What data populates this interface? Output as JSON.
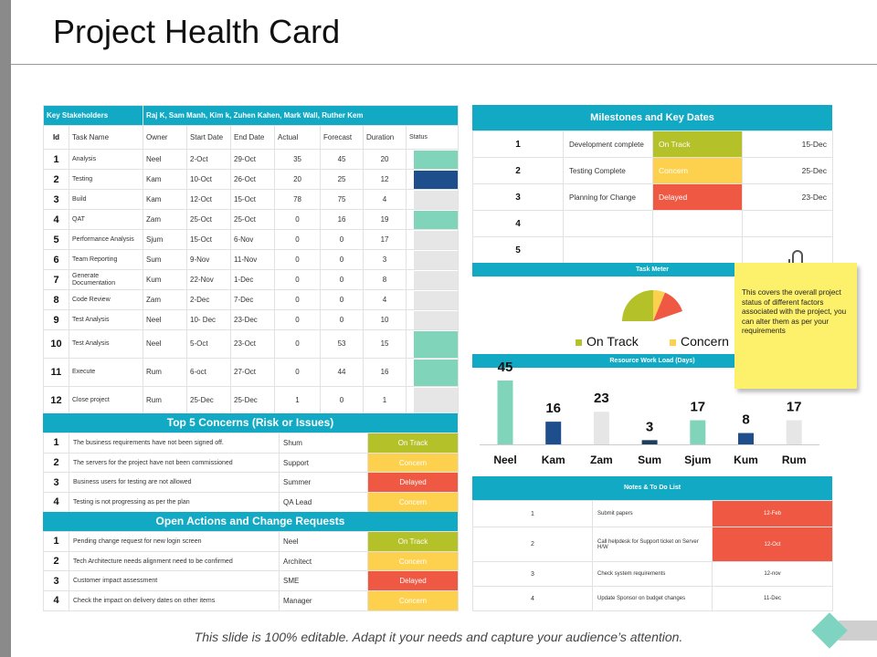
{
  "title": "Project Health Card",
  "colors": {
    "accent": "#11a9c4",
    "on_track": "#b5c128",
    "concern": "#fdd14e",
    "delayed": "#ef5843",
    "teal": "#7fd4b9",
    "navy": "#1f4e8c",
    "grey": "#e6e6e6"
  },
  "stakeholders": {
    "label": "Key Stakeholders",
    "names": "Raj K, Sam Manh,  Kim k, Zuhen  Kahen, Mark  Wall, Ruther  Kem"
  },
  "task_table": {
    "headers": [
      "Id",
      "Task Name",
      "Owner",
      "Start Date",
      "End Date",
      "Actual",
      "Forecast",
      "Duration",
      "Status"
    ],
    "rows": [
      {
        "id": "1",
        "task": "Analysis",
        "owner": "Neel",
        "start": "2-Oct",
        "end": "29-Oct",
        "actual": "35",
        "forecast": "45",
        "duration": "20",
        "status": "teal"
      },
      {
        "id": "2",
        "task": "Testing",
        "owner": "Kam",
        "start": "10-Oct",
        "end": "26-Oct",
        "actual": "20",
        "forecast": "25",
        "duration": "12",
        "status": "navy"
      },
      {
        "id": "3",
        "task": "Build",
        "owner": "Kam",
        "start": "12-Oct",
        "end": "15-Oct",
        "actual": "78",
        "forecast": "75",
        "duration": "4",
        "status": "grey"
      },
      {
        "id": "4",
        "task": "QAT",
        "owner": "Zam",
        "start": "25-Oct",
        "end": "25-Oct",
        "actual": "0",
        "forecast": "16",
        "duration": "19",
        "status": "teal"
      },
      {
        "id": "5",
        "task": "Performance Analysis",
        "owner": "Sjum",
        "start": "15-Oct",
        "end": "6-Nov",
        "actual": "0",
        "forecast": "0",
        "duration": "17",
        "status": "grey"
      },
      {
        "id": "6",
        "task": "Team Reporting",
        "owner": "Sum",
        "start": "9-Nov",
        "end": "11-Nov",
        "actual": "0",
        "forecast": "0",
        "duration": "3",
        "status": "grey"
      },
      {
        "id": "7",
        "task": "Generate Documentation",
        "owner": "Kum",
        "start": "22-Nov",
        "end": "1-Dec",
        "actual": "0",
        "forecast": "0",
        "duration": "8",
        "status": "grey"
      },
      {
        "id": "8",
        "task": "Code Review",
        "owner": "Zam",
        "start": "2-Dec",
        "end": "7-Dec",
        "actual": "0",
        "forecast": "0",
        "duration": "4",
        "status": "grey"
      },
      {
        "id": "9",
        "task": "Test Analysis",
        "owner": "Neel",
        "start": "10- Dec",
        "end": "23-Dec",
        "actual": "0",
        "forecast": "0",
        "duration": "10",
        "status": "grey"
      },
      {
        "id": "10",
        "task": "Test Analysis",
        "owner": "Neel",
        "start": "5-Oct",
        "end": "23-Oct",
        "actual": "0",
        "forecast": "53",
        "duration": "15",
        "status": "teal"
      },
      {
        "id": "11",
        "task": "Execute",
        "owner": "Rum",
        "start": "6-oct",
        "end": "27-Oct",
        "actual": "0",
        "forecast": "44",
        "duration": "16",
        "status": "teal"
      },
      {
        "id": "12",
        "task": "Close project",
        "owner": "Rum",
        "start": "25-Dec",
        "end": "25-Dec",
        "actual": "1",
        "forecast": "0",
        "duration": "1",
        "status": "grey"
      }
    ]
  },
  "concerns": {
    "title": "Top 5 Concerns (Risk or Issues)",
    "rows": [
      {
        "id": "1",
        "text": "The business requirements have not been signed off.",
        "owner": "Shum",
        "status": "On Track",
        "color": "on_track"
      },
      {
        "id": "2",
        "text": "The servers for the project have not been commissioned",
        "owner": "Support",
        "status": "Concern",
        "color": "concern"
      },
      {
        "id": "3",
        "text": "Business users for testing are not allowed",
        "owner": "Summer",
        "status": "Delayed",
        "color": "delayed"
      },
      {
        "id": "4",
        "text": "Testing is not progressing as per the plan",
        "owner": "QA Lead",
        "status": "Concern",
        "color": "concern"
      }
    ]
  },
  "actions": {
    "title": "Open Actions and Change Requests",
    "rows": [
      {
        "id": "1",
        "text": "Pending change request for new login screen",
        "owner": "Neel",
        "status": "On Track",
        "color": "on_track"
      },
      {
        "id": "2",
        "text": "Tech Architecture needs alignment need to be confirmed",
        "owner": "Architect",
        "status": "Concern",
        "color": "concern"
      },
      {
        "id": "3",
        "text": "Customer impact assessment",
        "owner": "SME",
        "status": "Delayed",
        "color": "delayed"
      },
      {
        "id": "4",
        "text": "Check the impact on delivery dates on other items",
        "owner": "Manager",
        "status": "Concern",
        "color": "concern"
      }
    ]
  },
  "milestones": {
    "title": "Milestones and Key Dates",
    "rows": [
      {
        "id": "1",
        "name": "Development complete",
        "status": "On Track",
        "color": "on_track",
        "date": "15-Dec"
      },
      {
        "id": "2",
        "name": "Testing Complete",
        "status": "Concern",
        "color": "concern",
        "date": "25-Dec"
      },
      {
        "id": "3",
        "name": "Planning for Change",
        "status": "Delayed",
        "color": "delayed",
        "date": "23-Dec"
      },
      {
        "id": "4",
        "name": "",
        "status": "",
        "color": "",
        "date": ""
      },
      {
        "id": "5",
        "name": "",
        "status": "",
        "color": "",
        "date": ""
      }
    ]
  },
  "task_meter": {
    "title": "Task Meter",
    "legend": [
      "On Track",
      "Concern"
    ]
  },
  "sticky_note": "This covers the overall project status of different factors associated with the project, you can alter them as per your requirements",
  "chart_data": {
    "type": "bar",
    "title": "Resource Work Load (Days)",
    "categories": [
      "Neel",
      "Kam",
      "Zam",
      "Sum",
      "Sjum",
      "Kum",
      "Rum"
    ],
    "values": [
      45,
      16,
      23,
      3,
      17,
      8,
      17
    ],
    "bar_colors": [
      "#7fd4b9",
      "#1f4e8c",
      "#e6e6e6",
      "#1f3d5c",
      "#7fd4b9",
      "#1f4e8c",
      "#e6e6e6"
    ],
    "ylim": [
      0,
      45
    ]
  },
  "notes": {
    "title": "Notes & To Do List",
    "rows": [
      {
        "id": "1",
        "text": "Submit papers",
        "date": "12-Feb",
        "highlight": true
      },
      {
        "id": "2",
        "text": "Call helpdesk for Support ticket on Server H/W",
        "date": "12-Oct",
        "highlight": true
      },
      {
        "id": "3",
        "text": "Check system requirements",
        "date": "12-nov",
        "highlight": false
      },
      {
        "id": "4",
        "text": "Update Sponsor on budget changes",
        "date": "11-Dec",
        "highlight": false
      }
    ]
  },
  "footer": "This slide is 100% editable. Adapt it your needs and capture your audience’s attention."
}
